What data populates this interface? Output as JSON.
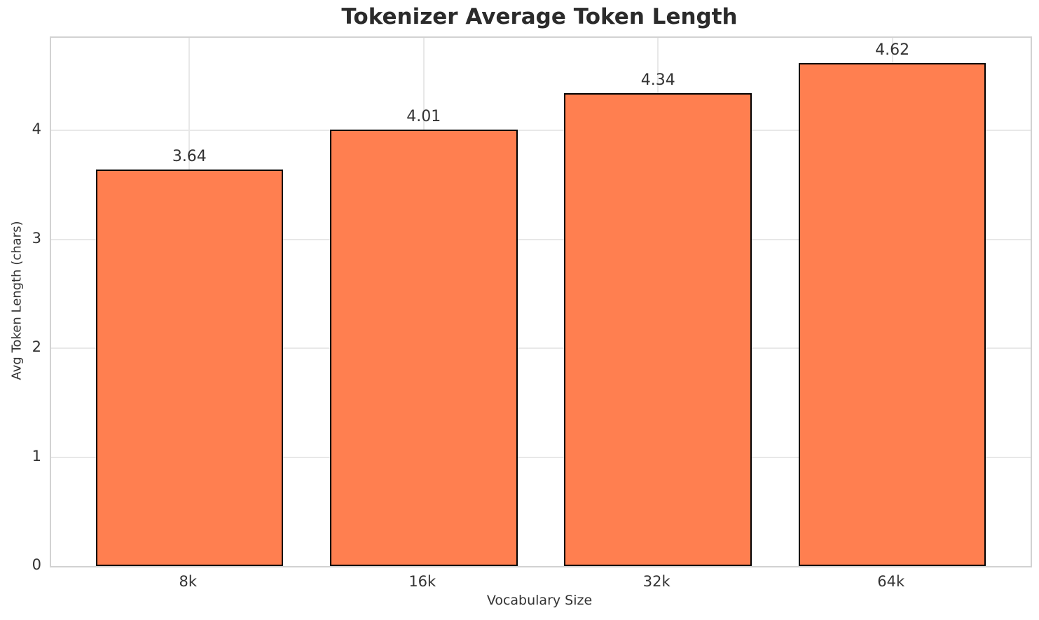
{
  "chart_data": {
    "type": "bar",
    "title": "Tokenizer Average Token Length",
    "xlabel": "Vocabulary Size",
    "ylabel": "Avg Token Length (chars)",
    "categories": [
      "8k",
      "16k",
      "32k",
      "64k"
    ],
    "values": [
      3.64,
      4.01,
      4.34,
      4.62
    ],
    "value_labels": [
      "3.64",
      "4.01",
      "4.34",
      "4.62"
    ],
    "y_ticks": [
      "0",
      "1",
      "2",
      "3",
      "4"
    ],
    "y_tick_values": [
      0,
      1,
      2,
      3,
      4
    ],
    "ylim": [
      0,
      4.85
    ],
    "grid": true,
    "bar_color": "#FF7F50",
    "bar_edge_color": "#000000",
    "background_color": "#FFFFFF",
    "grid_color": "#E8E8E8",
    "spine_color": "#D2D2D2",
    "text_color": "#333333",
    "title_color": "#2B2B2B"
  }
}
